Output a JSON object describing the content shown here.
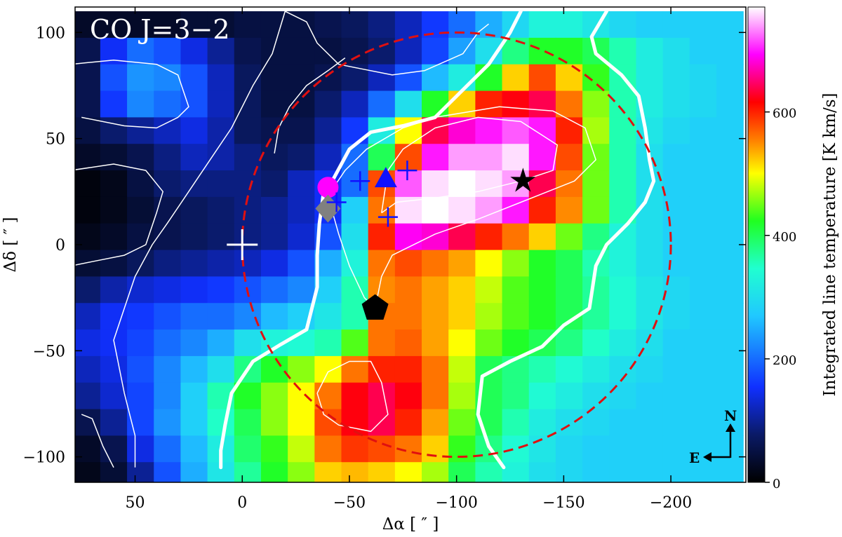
{
  "chart_data": {
    "type": "heatmap",
    "title": "CO J=3−2",
    "xlabel": "Δα [ ″ ]",
    "ylabel": "Δδ [ ″ ]",
    "colorbar_label": "Integrated line temperature [K km/s]",
    "xlim": [
      78,
      -235
    ],
    "ylim": [
      -112,
      112
    ],
    "clim": [
      0,
      770
    ],
    "x_ticks": [
      50,
      0,
      -50,
      -100,
      -150,
      -200
    ],
    "x_tick_labels": [
      "50",
      "0",
      "−50",
      "−100",
      "−150",
      "−200"
    ],
    "y_ticks": [
      100,
      50,
      0,
      -50,
      -100
    ],
    "y_tick_labels": [
      "100",
      "50",
      "0",
      "−50",
      "−100"
    ],
    "cbar_ticks": [
      0,
      200,
      400,
      600
    ],
    "cbar_tick_labels": [
      "0",
      "200",
      "400",
      "600"
    ],
    "colormap": [
      "#000000",
      "#0a1a66",
      "#1030ff",
      "#20c8ff",
      "#20ffd0",
      "#20ff20",
      "#ffff00",
      "#ff8000",
      "#ff0000",
      "#ff00ff",
      "#ffffff"
    ],
    "grid": {
      "x_start": 72.5,
      "y_start": 103.75,
      "dx": -12.5,
      "dy": -12.5,
      "cols": 25,
      "rows": 18,
      "values": [
        [
          30,
          30,
          30,
          30,
          40,
          40,
          50,
          50,
          50,
          60,
          70,
          90,
          120,
          160,
          200,
          250,
          290,
          330,
          330,
          310,
          290,
          280,
          280,
          280,
          280
        ],
        [
          60,
          150,
          200,
          180,
          140,
          100,
          60,
          50,
          50,
          50,
          60,
          80,
          120,
          170,
          240,
          300,
          380,
          420,
          420,
          400,
          360,
          320,
          300,
          280,
          280
        ],
        [
          60,
          180,
          230,
          220,
          180,
          120,
          70,
          50,
          50,
          60,
          80,
          120,
          180,
          260,
          320,
          420,
          520,
          580,
          520,
          430,
          360,
          320,
          300,
          290,
          280
        ],
        [
          60,
          160,
          220,
          200,
          180,
          120,
          70,
          50,
          50,
          80,
          120,
          200,
          300,
          420,
          520,
          600,
          620,
          640,
          560,
          460,
          360,
          320,
          300,
          290,
          280
        ],
        [
          50,
          80,
          100,
          120,
          140,
          110,
          70,
          60,
          60,
          100,
          160,
          320,
          500,
          640,
          680,
          700,
          720,
          700,
          600,
          470,
          360,
          310,
          290,
          280,
          280
        ],
        [
          30,
          40,
          60,
          90,
          120,
          110,
          90,
          70,
          80,
          120,
          200,
          400,
          580,
          700,
          740,
          740,
          760,
          700,
          580,
          450,
          360,
          300,
          280,
          280,
          280
        ],
        [
          10,
          20,
          50,
          80,
          90,
          90,
          90,
          80,
          120,
          150,
          200,
          580,
          720,
          760,
          770,
          760,
          740,
          640,
          560,
          450,
          360,
          300,
          280,
          280,
          280
        ],
        [
          10,
          20,
          40,
          60,
          70,
          80,
          90,
          100,
          120,
          150,
          280,
          560,
          760,
          770,
          760,
          740,
          700,
          600,
          550,
          450,
          360,
          300,
          280,
          280,
          280
        ],
        [
          20,
          30,
          50,
          60,
          70,
          80,
          90,
          100,
          130,
          180,
          300,
          600,
          690,
          680,
          640,
          600,
          560,
          520,
          450,
          380,
          330,
          300,
          280,
          280,
          280
        ],
        [
          40,
          50,
          70,
          90,
          100,
          110,
          120,
          140,
          180,
          250,
          330,
          560,
          580,
          560,
          540,
          500,
          460,
          420,
          400,
          360,
          330,
          300,
          280,
          280,
          280
        ],
        [
          80,
          110,
          130,
          140,
          150,
          160,
          180,
          200,
          220,
          280,
          360,
          550,
          560,
          540,
          520,
          480,
          440,
          420,
          400,
          370,
          340,
          310,
          290,
          280,
          280
        ],
        [
          120,
          150,
          160,
          180,
          200,
          200,
          220,
          260,
          280,
          310,
          360,
          560,
          560,
          540,
          520,
          470,
          440,
          420,
          400,
          370,
          340,
          310,
          290,
          280,
          280
        ],
        [
          140,
          150,
          170,
          200,
          220,
          250,
          300,
          330,
          340,
          360,
          440,
          560,
          570,
          540,
          500,
          450,
          420,
          400,
          380,
          350,
          320,
          300,
          280,
          280,
          280
        ],
        [
          120,
          140,
          180,
          220,
          260,
          300,
          380,
          420,
          460,
          500,
          560,
          600,
          600,
          560,
          480,
          400,
          380,
          360,
          340,
          320,
          300,
          290,
          280,
          280,
          280
        ],
        [
          100,
          130,
          170,
          220,
          280,
          360,
          420,
          460,
          500,
          560,
          620,
          640,
          620,
          560,
          470,
          400,
          380,
          340,
          320,
          300,
          290,
          280,
          280,
          280,
          280
        ],
        [
          60,
          100,
          170,
          230,
          280,
          350,
          400,
          460,
          500,
          580,
          620,
          640,
          600,
          540,
          450,
          400,
          360,
          320,
          300,
          290,
          280,
          280,
          280,
          280,
          280
        ],
        [
          30,
          60,
          140,
          200,
          260,
          320,
          390,
          430,
          480,
          560,
          590,
          580,
          560,
          520,
          430,
          380,
          340,
          310,
          290,
          280,
          280,
          280,
          280,
          280,
          280
        ],
        [
          20,
          40,
          100,
          180,
          250,
          310,
          370,
          420,
          460,
          520,
          530,
          520,
          500,
          470,
          400,
          360,
          330,
          300,
          290,
          280,
          280,
          280,
          280,
          280,
          280
        ]
      ]
    },
    "contours": {
      "thin": [
        [
          [
            -20,
            110
          ],
          [
            -30,
            105
          ],
          [
            -35,
            95
          ],
          [
            -45,
            85
          ],
          [
            -55,
            83
          ],
          [
            -70,
            80
          ],
          [
            -85,
            82
          ],
          [
            -103,
            90
          ],
          [
            -110,
            100
          ],
          [
            -115,
            104
          ]
        ],
        [
          [
            -15,
            43
          ],
          [
            -17,
            55
          ],
          [
            -22,
            65
          ],
          [
            -30,
            75
          ],
          [
            -40,
            82
          ],
          [
            -48,
            88
          ]
        ],
        [
          [
            -20,
            110
          ],
          [
            -14,
            90
          ],
          [
            -5,
            75
          ],
          [
            5,
            55
          ],
          [
            15,
            40
          ],
          [
            25,
            25
          ],
          [
            35,
            10
          ],
          [
            42,
            0
          ],
          [
            50,
            -15
          ],
          [
            55,
            -30
          ],
          [
            60,
            -45
          ],
          [
            58,
            -55
          ],
          [
            55,
            -70
          ],
          [
            50,
            -90
          ],
          [
            50,
            -105
          ]
        ],
        [
          [
            -40,
            23
          ],
          [
            -45,
            5
          ],
          [
            -50,
            -10
          ],
          [
            -57,
            -25
          ],
          [
            -62,
            -30
          ],
          [
            -65,
            -15
          ],
          [
            -70,
            -5
          ],
          [
            -90,
            5
          ],
          [
            -110,
            12
          ],
          [
            -130,
            20
          ],
          [
            -155,
            30
          ],
          [
            -165,
            40
          ],
          [
            -160,
            55
          ],
          [
            -145,
            63
          ],
          [
            -120,
            65
          ],
          [
            -90,
            60
          ],
          [
            -75,
            55
          ],
          [
            -58,
            45
          ],
          [
            -48,
            35
          ],
          [
            -40,
            23
          ]
        ],
        [
          [
            -65,
            15
          ],
          [
            -72,
            20
          ],
          [
            -90,
            22
          ],
          [
            -110,
            25
          ],
          [
            -130,
            30
          ],
          [
            -145,
            35
          ],
          [
            -147,
            47
          ],
          [
            -130,
            58
          ],
          [
            -110,
            60
          ],
          [
            -90,
            55
          ],
          [
            -75,
            45
          ],
          [
            -68,
            35
          ],
          [
            -65,
            15
          ]
        ],
        [
          [
            -35,
            -70
          ],
          [
            -40,
            -60
          ],
          [
            -50,
            -55
          ],
          [
            -60,
            -55
          ],
          [
            -65,
            -65
          ],
          [
            -68,
            -80
          ],
          [
            -60,
            -88
          ],
          [
            -45,
            -85
          ],
          [
            -38,
            -80
          ],
          [
            -35,
            -70
          ]
        ],
        [
          [
            80,
            85
          ],
          [
            60,
            87
          ],
          [
            40,
            85
          ],
          [
            30,
            80
          ],
          [
            25,
            65
          ],
          [
            30,
            60
          ],
          [
            40,
            55
          ],
          [
            55,
            56
          ],
          [
            75,
            60
          ]
        ],
        [
          [
            80,
            35
          ],
          [
            60,
            38
          ],
          [
            45,
            35
          ],
          [
            37,
            25
          ],
          [
            40,
            15
          ],
          [
            45,
            0
          ],
          [
            55,
            -5
          ],
          [
            70,
            -8
          ],
          [
            80,
            -10
          ]
        ],
        [
          [
            60,
            -105
          ],
          [
            65,
            -95
          ],
          [
            70,
            -82
          ],
          [
            75,
            -80
          ]
        ]
      ],
      "thick": [
        [
          [
            -42,
            30
          ],
          [
            -38,
            25
          ],
          [
            -36,
            10
          ],
          [
            -35,
            -5
          ],
          [
            -35,
            -20
          ],
          [
            -30,
            -40
          ],
          [
            -18,
            -47
          ],
          [
            -5,
            -55
          ],
          [
            5,
            -70
          ],
          [
            8,
            -85
          ],
          [
            10,
            -97
          ],
          [
            10,
            -105
          ]
        ],
        [
          [
            -42,
            30
          ],
          [
            -50,
            45
          ],
          [
            -60,
            53
          ],
          [
            -75,
            56
          ],
          [
            -90,
            60
          ],
          [
            -100,
            70
          ],
          [
            -115,
            85
          ],
          [
            -125,
            100
          ],
          [
            -130,
            110
          ]
        ],
        [
          [
            -170,
            110
          ],
          [
            -163,
            98
          ],
          [
            -165,
            90
          ],
          [
            -177,
            80
          ],
          [
            -185,
            70
          ],
          [
            -188,
            55
          ],
          [
            -190,
            40
          ],
          [
            -192,
            30
          ],
          [
            -188,
            20
          ],
          [
            -180,
            10
          ],
          [
            -170,
            0
          ],
          [
            -165,
            -10
          ],
          [
            -162,
            -30
          ],
          [
            -150,
            -38
          ],
          [
            -140,
            -48
          ],
          [
            -125,
            -55
          ],
          [
            -112,
            -62
          ],
          [
            -110,
            -80
          ],
          [
            -115,
            -95
          ],
          [
            -122,
            -105
          ]
        ]
      ]
    },
    "circle": {
      "center": [
        -100,
        0
      ],
      "radius": 100,
      "color": "#e01010"
    },
    "markers": [
      {
        "shape": "circle",
        "x": -40,
        "y": 27,
        "color": "#ff00ff"
      },
      {
        "shape": "diamond",
        "x": -40,
        "y": 17,
        "color": "#808080"
      },
      {
        "shape": "plus",
        "x": -44,
        "y": 20,
        "color": "#1010ff"
      },
      {
        "shape": "plus",
        "x": -55,
        "y": 30,
        "color": "#1010ff"
      },
      {
        "shape": "plus",
        "x": -77,
        "y": 35,
        "color": "#1010ff"
      },
      {
        "shape": "plus",
        "x": -68,
        "y": 13,
        "color": "#1010ff"
      },
      {
        "shape": "triangle",
        "x": -67,
        "y": 31,
        "color": "#1010ff"
      },
      {
        "shape": "star",
        "x": -131,
        "y": 30,
        "color": "#000000"
      },
      {
        "shape": "pentagon",
        "x": -62,
        "y": -30,
        "color": "#000000"
      },
      {
        "shape": "bigplus",
        "x": 0,
        "y": 0,
        "color": "#ffffff"
      }
    ],
    "compass": {
      "north": "N",
      "east": "E"
    }
  }
}
